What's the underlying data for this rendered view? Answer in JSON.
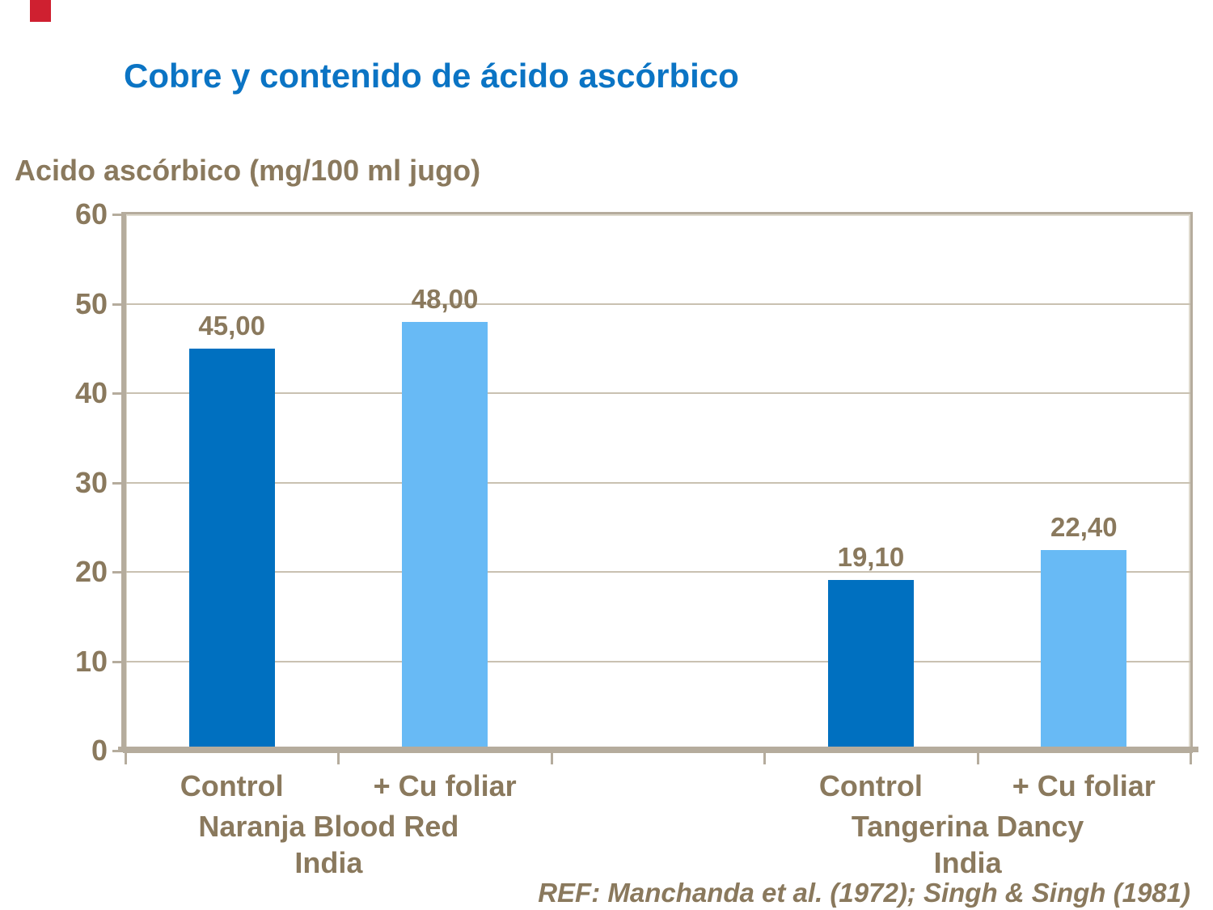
{
  "slide": {
    "background_color": "#ffffff",
    "accent_shape_color": "#cf2030",
    "title_color": "#0b74c4",
    "text_color": "#8a795d",
    "axis_color": "#b5ac9d",
    "axis_bevel_color": "#ded9cd",
    "gridline_color": "#c9c1b1",
    "reference": "REF: Manchanda et al. (1972); Singh & Singh (1981)"
  },
  "chart_data": {
    "type": "bar",
    "title": "Cobre y contenido de ácido ascórbico",
    "ylabel": "Acido ascórbico (mg/100 ml jugo)",
    "xlabel": "",
    "ylim": [
      0,
      60
    ],
    "yticks": [
      0,
      10,
      20,
      30,
      40,
      50,
      60
    ],
    "grid": true,
    "legend": false,
    "decimal_style": "comma",
    "axis_slots": 5,
    "bar_slot_indices": [
      0,
      1,
      3,
      4
    ],
    "series_colors": {
      "Control": "#0070c0",
      "+ Cu foliar": "#68baf5"
    },
    "groups": [
      {
        "group_label_lines": [
          "Naranja Blood Red",
          "India"
        ],
        "bars": [
          {
            "category": "Control",
            "value": 45.0,
            "value_label": "45,00",
            "color": "#0070c0"
          },
          {
            "category": "+ Cu foliar",
            "value": 48.0,
            "value_label": "48,00",
            "color": "#68baf5"
          }
        ]
      },
      {
        "group_label_lines": [
          "Tangerina Dancy",
          "India"
        ],
        "bars": [
          {
            "category": "Control",
            "value": 19.1,
            "value_label": "19,10",
            "color": "#0070c0"
          },
          {
            "category": "+ Cu foliar",
            "value": 22.4,
            "value_label": "22,40",
            "color": "#68baf5"
          }
        ]
      }
    ]
  }
}
